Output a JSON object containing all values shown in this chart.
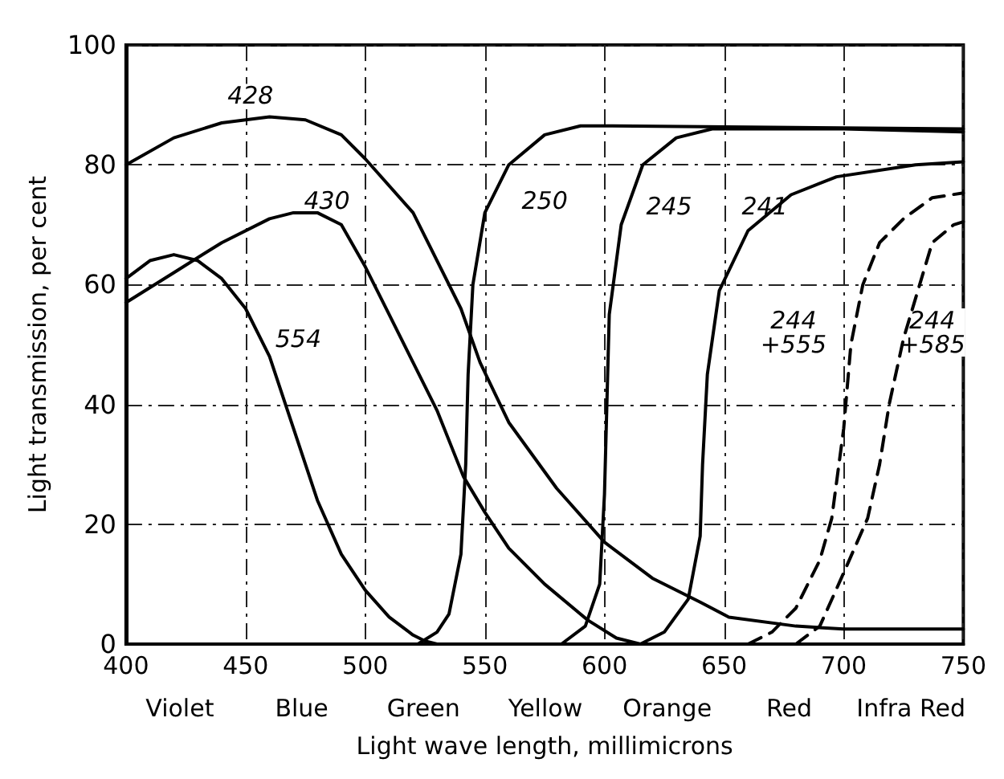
{
  "chart_data": {
    "type": "line",
    "xlabel": "Light wave length, millimicrons",
    "ylabel": "Light transmission, per cent",
    "xlim": [
      400,
      750
    ],
    "xticks": [
      400,
      450,
      500,
      550,
      600,
      650,
      700,
      750
    ],
    "ylim": [
      0,
      100
    ],
    "yticks": [
      0,
      20,
      40,
      60,
      80,
      100
    ],
    "grid": true,
    "marker": "none",
    "line_style": "solid",
    "series": [
      {
        "color": "#000000",
        "x": [
          400,
          420,
          440,
          460,
          475,
          490,
          500,
          520,
          540,
          548,
          560,
          580,
          600,
          620,
          640,
          652,
          680,
          700,
          750
        ],
        "values": [
          80,
          84.5,
          87,
          88,
          87.5,
          85,
          81,
          72,
          56,
          47,
          37,
          26,
          17,
          11,
          7,
          4.5,
          3,
          2.5,
          2.5
        ]
      },
      {
        "color": "#000000",
        "x": [
          400,
          420,
          440,
          460,
          470,
          480,
          490,
          500,
          510,
          520,
          530,
          541,
          550,
          560,
          575,
          593,
          605,
          615
        ],
        "values": [
          57,
          62,
          67,
          71,
          72,
          72,
          70,
          63,
          55,
          47,
          39,
          28,
          22,
          16,
          10,
          4,
          1,
          0
        ]
      },
      {
        "color": "#000000",
        "x": [
          400,
          410,
          420,
          430,
          440,
          450,
          460,
          470,
          480,
          490,
          500,
          510,
          520,
          525,
          530
        ],
        "values": [
          61,
          64,
          65,
          64,
          61,
          56,
          48,
          36,
          24,
          15,
          9,
          4.5,
          1.5,
          0.5,
          0
        ]
      },
      {
        "color": "#000000",
        "x": [
          522,
          530,
          535,
          540,
          542,
          543,
          545,
          550,
          560,
          575,
          590,
          600,
          750
        ],
        "values": [
          0,
          2,
          5,
          15,
          30,
          45,
          60,
          72,
          80,
          85,
          86.5,
          86.5,
          86
        ]
      },
      {
        "color": "#000000",
        "x": [
          582,
          592,
          598,
          600,
          601,
          602,
          607,
          616,
          630,
          645,
          700,
          750
        ],
        "values": [
          0,
          3,
          10,
          25,
          40,
          55,
          70,
          80,
          84.5,
          86,
          86,
          85.5
        ]
      },
      {
        "color": "#000000",
        "x": [
          615,
          625,
          635,
          640,
          641,
          643,
          648,
          660,
          678,
          697,
          730,
          750
        ],
        "values": [
          0,
          2,
          7.5,
          18,
          30,
          45,
          59,
          69,
          75,
          78,
          80,
          80.5
        ]
      },
      {
        "color": "#000000",
        "line_style": "dashed",
        "x": [
          660,
          670,
          680,
          690,
          695,
          700,
          703,
          708,
          715,
          725,
          737,
          750
        ],
        "values": [
          0,
          2,
          6,
          14,
          21,
          36,
          50,
          60,
          67,
          71,
          74.5,
          75.3
        ]
      },
      {
        "color": "#000000",
        "line_style": "dashed",
        "x": [
          680,
          690,
          699,
          710,
          715,
          719,
          725,
          731,
          737,
          746,
          750
        ],
        "values": [
          0,
          3,
          11,
          21,
          30,
          40,
          51,
          59,
          67,
          70,
          70.5
        ]
      }
    ],
    "annotations": [
      {
        "text": "428",
        "x": 452,
        "y": 91.5
      },
      {
        "text": "430",
        "x": 484,
        "y": 74
      },
      {
        "text": "554",
        "x": 472,
        "y": 51
      },
      {
        "text": "250",
        "x": 575,
        "y": 74
      },
      {
        "text": "245",
        "x": 627,
        "y": 73
      },
      {
        "text": "241",
        "x": 667,
        "y": 73
      },
      {
        "text": "244\n+555",
        "x": 679,
        "y": 52
      },
      {
        "text": "244\n+585",
        "x": 737,
        "y": 52
      },
      "Violet",
      "Blue",
      "Green",
      "Yellow",
      "Orange",
      "Red",
      "Infra Red"
    ]
  }
}
